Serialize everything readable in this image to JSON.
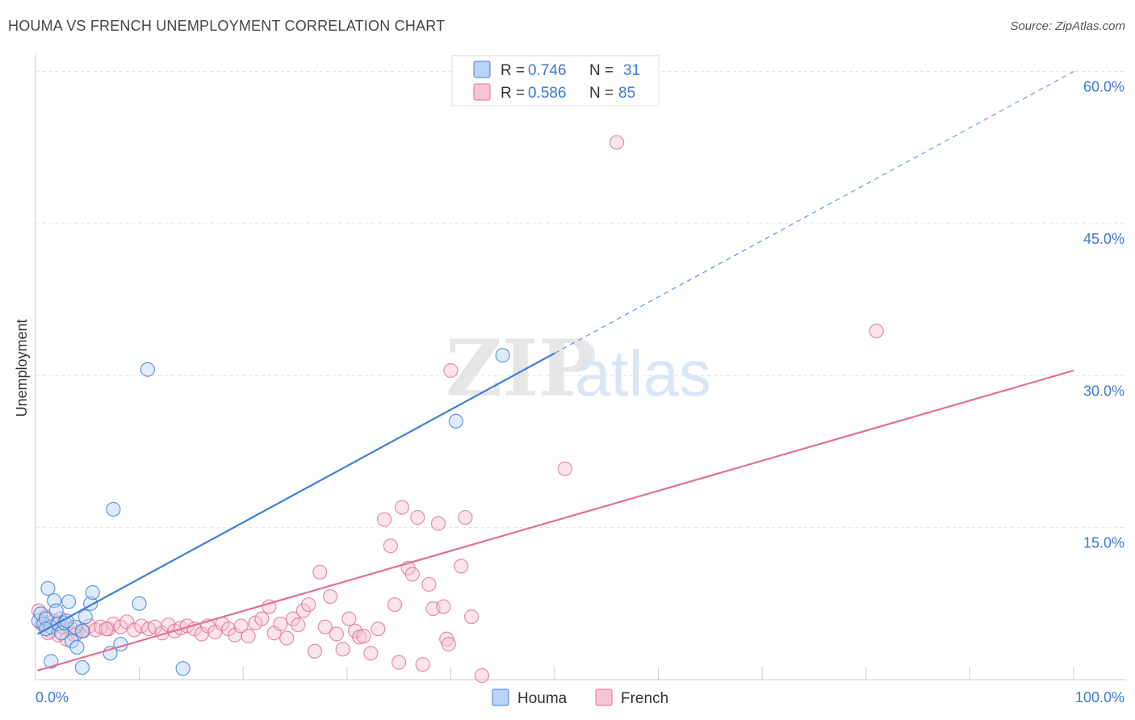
{
  "title": "HOUMA VS FRENCH UNEMPLOYMENT CORRELATION CHART",
  "source": "Source: ZipAtlas.com",
  "watermark": {
    "zip": "ZIP",
    "atlas": "atlas"
  },
  "colors": {
    "houma": "#3e7fd6",
    "houma_fill": "#b8d3f5",
    "french": "#e07096",
    "french_fill": "#f7c4d4",
    "accent_text": "#3e78d4"
  },
  "legend": {
    "rows": [
      {
        "r_label": "R = ",
        "r_value": "0.746",
        "n_label": "N = ",
        "n_value": "31"
      },
      {
        "r_label": "R = ",
        "r_value": "0.586",
        "n_label": "N = ",
        "n_value": "85"
      }
    ]
  },
  "chart_data": {
    "type": "scatter",
    "title": "HOUMA VS FRENCH UNEMPLOYMENT CORRELATION CHART",
    "xlabel": "",
    "ylabel": "Unemployment",
    "xlim": [
      0,
      100
    ],
    "ylim": [
      0,
      61
    ],
    "x_tick_labels": [
      "0.0%",
      "100.0%"
    ],
    "y_ticks": [
      {
        "value": 15,
        "label": "15.0%"
      },
      {
        "value": 30,
        "label": "30.0%"
      },
      {
        "value": 45,
        "label": "45.0%"
      },
      {
        "value": 60,
        "label": "60.0%"
      }
    ],
    "grid": true,
    "legend_position": "top-center",
    "series": [
      {
        "name": "Houma",
        "r": 0.746,
        "n": 31,
        "trend": {
          "x0": 0.2,
          "y0": 4.5,
          "x1": 50,
          "y1": 32.2,
          "dashed_to_x": 100,
          "dashed_to_y": 60.0
        },
        "points": [
          [
            0.3,
            5.8
          ],
          [
            0.5,
            6.5
          ],
          [
            0.8,
            5.5
          ],
          [
            1.0,
            6.0
          ],
          [
            1.2,
            9.0
          ],
          [
            1.5,
            5.2
          ],
          [
            1.8,
            7.8
          ],
          [
            2.0,
            6.8
          ],
          [
            2.2,
            5.5
          ],
          [
            2.5,
            4.6
          ],
          [
            2.8,
            5.6
          ],
          [
            3.2,
            7.7
          ],
          [
            3.5,
            3.8
          ],
          [
            3.8,
            5.2
          ],
          [
            4.0,
            3.2
          ],
          [
            4.5,
            4.8
          ],
          [
            4.8,
            6.2
          ],
          [
            5.3,
            7.5
          ],
          [
            5.5,
            8.6
          ],
          [
            1.5,
            1.8
          ],
          [
            4.5,
            1.2
          ],
          [
            7.2,
            2.6
          ],
          [
            7.5,
            16.8
          ],
          [
            8.2,
            3.5
          ],
          [
            10.0,
            7.5
          ],
          [
            10.8,
            30.6
          ],
          [
            14.2,
            1.1
          ],
          [
            40.5,
            25.5
          ],
          [
            45.0,
            32.0
          ],
          [
            1.0,
            5.0
          ],
          [
            3.0,
            5.8
          ]
        ]
      },
      {
        "name": "French",
        "r": 0.586,
        "n": 85,
        "trend": {
          "x0": 0.2,
          "y0": 0.9,
          "x1": 100,
          "y1": 30.5
        },
        "points": [
          [
            0.3,
            6.8
          ],
          [
            0.6,
            5.5
          ],
          [
            1.0,
            6.2
          ],
          [
            1.4,
            4.8
          ],
          [
            1.8,
            5.8
          ],
          [
            2.2,
            4.4
          ],
          [
            2.6,
            5.2
          ],
          [
            3.0,
            4.0
          ],
          [
            3.5,
            5.0
          ],
          [
            4.0,
            4.6
          ],
          [
            4.6,
            4.8
          ],
          [
            5.2,
            5.3
          ],
          [
            5.8,
            4.9
          ],
          [
            6.3,
            5.2
          ],
          [
            7.0,
            5.0
          ],
          [
            7.5,
            5.5
          ],
          [
            8.2,
            5.2
          ],
          [
            8.8,
            5.7
          ],
          [
            9.5,
            4.9
          ],
          [
            10.2,
            5.3
          ],
          [
            10.9,
            5.0
          ],
          [
            11.5,
            5.2
          ],
          [
            12.2,
            4.6
          ],
          [
            12.8,
            5.4
          ],
          [
            13.4,
            4.8
          ],
          [
            14.0,
            5.1
          ],
          [
            14.6,
            5.3
          ],
          [
            15.3,
            5.0
          ],
          [
            16.0,
            4.5
          ],
          [
            16.6,
            5.3
          ],
          [
            17.3,
            4.7
          ],
          [
            18.0,
            5.5
          ],
          [
            18.6,
            5.0
          ],
          [
            19.2,
            4.4
          ],
          [
            19.8,
            5.3
          ],
          [
            20.5,
            4.3
          ],
          [
            21.2,
            5.6
          ],
          [
            21.8,
            6.0
          ],
          [
            22.5,
            7.2
          ],
          [
            23.0,
            4.6
          ],
          [
            23.6,
            5.5
          ],
          [
            24.2,
            4.1
          ],
          [
            24.8,
            6.0
          ],
          [
            25.3,
            5.4
          ],
          [
            25.8,
            6.8
          ],
          [
            26.3,
            7.4
          ],
          [
            26.9,
            2.8
          ],
          [
            27.4,
            10.6
          ],
          [
            27.9,
            5.2
          ],
          [
            28.4,
            8.2
          ],
          [
            29.0,
            4.5
          ],
          [
            29.6,
            3.0
          ],
          [
            30.2,
            6.0
          ],
          [
            30.8,
            4.8
          ],
          [
            31.2,
            4.2
          ],
          [
            31.6,
            4.3
          ],
          [
            32.3,
            2.6
          ],
          [
            33.0,
            5.0
          ],
          [
            33.6,
            15.8
          ],
          [
            34.2,
            13.2
          ],
          [
            34.6,
            7.4
          ],
          [
            35.0,
            1.7
          ],
          [
            35.3,
            17.0
          ],
          [
            35.9,
            11.0
          ],
          [
            36.3,
            10.4
          ],
          [
            36.8,
            16.0
          ],
          [
            37.3,
            1.5
          ],
          [
            37.9,
            9.4
          ],
          [
            38.3,
            7.0
          ],
          [
            38.8,
            15.4
          ],
          [
            39.3,
            7.2
          ],
          [
            39.6,
            4.0
          ],
          [
            39.8,
            3.5
          ],
          [
            40.0,
            30.5
          ],
          [
            41.0,
            11.2
          ],
          [
            41.4,
            16.0
          ],
          [
            42.0,
            6.2
          ],
          [
            43.0,
            0.4
          ],
          [
            51.0,
            20.8
          ],
          [
            56.0,
            53.0
          ],
          [
            81.0,
            34.4
          ],
          [
            1.2,
            4.6
          ],
          [
            2.4,
            6.0
          ],
          [
            3.8,
            4.4
          ],
          [
            6.8,
            5.0
          ]
        ]
      }
    ]
  }
}
